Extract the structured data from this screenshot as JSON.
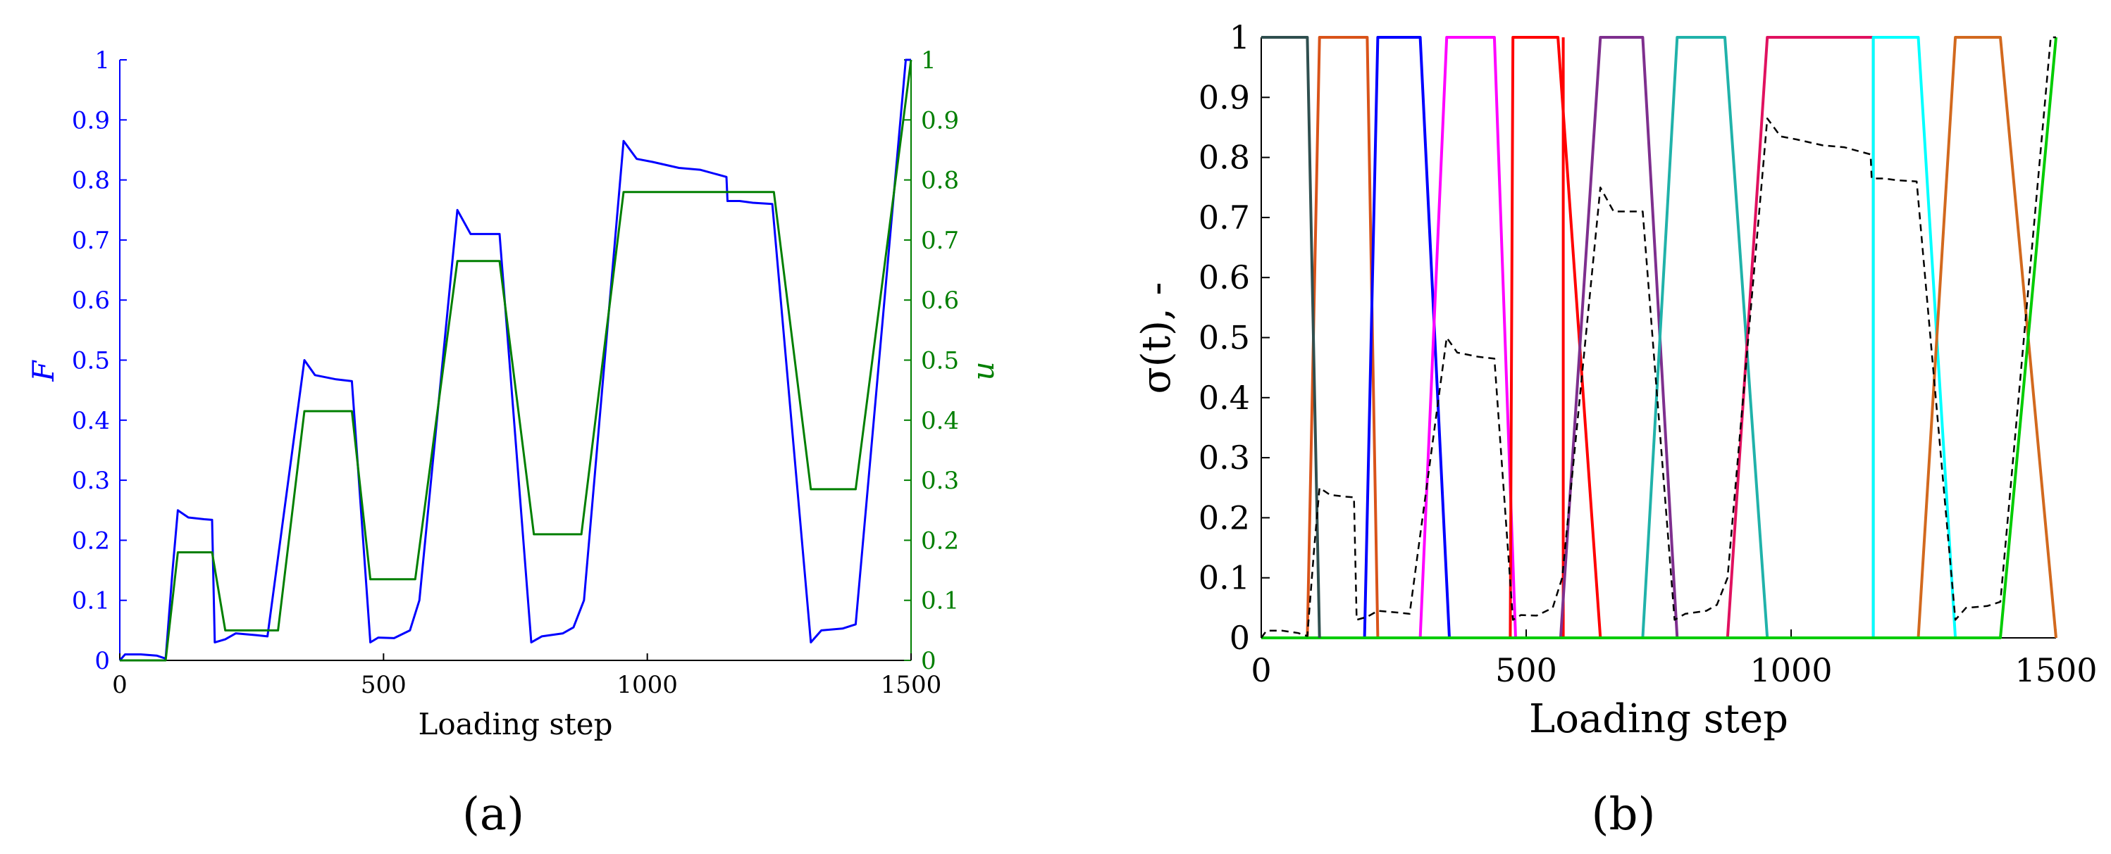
{
  "chart_data": [
    {
      "type": "line",
      "panel_label": "(a)",
      "xlabel": "Loading step",
      "ylabel_left": "F",
      "ylabel_right": "u",
      "xlim": [
        0,
        1500
      ],
      "ylim_left": [
        0,
        1
      ],
      "ylim_right": [
        0,
        1
      ],
      "xticks": [
        "0",
        "500",
        "1000",
        "1500"
      ],
      "yticks_left": [
        "0",
        "0.1",
        "0.2",
        "0.3",
        "0.4",
        "0.5",
        "0.6",
        "0.7",
        "0.8",
        "0.9",
        "1"
      ],
      "yticks_right": [
        "0",
        "0.1",
        "0.2",
        "0.3",
        "0.4",
        "0.5",
        "0.6",
        "0.7",
        "0.8",
        "0.9",
        "1"
      ],
      "grid": false,
      "series": [
        {
          "axis": "left",
          "color": "#0000ff",
          "points": [
            [
              0,
              0.0
            ],
            [
              10,
              0.01
            ],
            [
              40,
              0.01
            ],
            [
              70,
              0.008
            ],
            [
              87,
              0.003
            ],
            [
              100,
              0.15
            ],
            [
              110,
              0.25
            ],
            [
              130,
              0.238
            ],
            [
              160,
              0.235
            ],
            [
              175,
              0.234
            ],
            [
              180,
              0.03
            ],
            [
              200,
              0.035
            ],
            [
              220,
              0.045
            ],
            [
              260,
              0.042
            ],
            [
              280,
              0.04
            ],
            [
              350,
              0.5
            ],
            [
              370,
              0.475
            ],
            [
              410,
              0.468
            ],
            [
              440,
              0.465
            ],
            [
              475,
              0.03
            ],
            [
              490,
              0.038
            ],
            [
              520,
              0.037
            ],
            [
              550,
              0.05
            ],
            [
              568,
              0.1
            ],
            [
              640,
              0.75
            ],
            [
              665,
              0.71
            ],
            [
              705,
              0.71
            ],
            [
              720,
              0.71
            ],
            [
              780,
              0.03
            ],
            [
              800,
              0.04
            ],
            [
              840,
              0.045
            ],
            [
              860,
              0.055
            ],
            [
              880,
              0.1
            ],
            [
              955,
              0.865
            ],
            [
              980,
              0.835
            ],
            [
              1010,
              0.83
            ],
            [
              1060,
              0.82
            ],
            [
              1100,
              0.817
            ],
            [
              1150,
              0.805
            ],
            [
              1152,
              0.765
            ],
            [
              1175,
              0.765
            ],
            [
              1200,
              0.762
            ],
            [
              1237,
              0.76
            ],
            [
              1310,
              0.03
            ],
            [
              1330,
              0.05
            ],
            [
              1370,
              0.053
            ],
            [
              1395,
              0.06
            ],
            [
              1490,
              1.0
            ],
            [
              1500,
              1.0
            ]
          ]
        },
        {
          "axis": "right",
          "color": "#007f00",
          "points": [
            [
              0,
              0
            ],
            [
              87,
              0
            ],
            [
              110,
              0.18
            ],
            [
              175,
              0.18
            ],
            [
              200,
              0.05
            ],
            [
              300,
              0.05
            ],
            [
              350,
              0.415
            ],
            [
              440,
              0.415
            ],
            [
              475,
              0.135
            ],
            [
              560,
              0.135
            ],
            [
              640,
              0.665
            ],
            [
              720,
              0.665
            ],
            [
              785,
              0.21
            ],
            [
              875,
              0.21
            ],
            [
              955,
              0.78
            ],
            [
              1240,
              0.78
            ],
            [
              1310,
              0.285
            ],
            [
              1395,
              0.285
            ],
            [
              1500,
              1.0
            ]
          ]
        }
      ]
    },
    {
      "type": "line",
      "panel_label": "(b)",
      "xlabel": "Loading step",
      "ylabel": "σ(t), -",
      "xlim": [
        0,
        1500
      ],
      "ylim": [
        0,
        1
      ],
      "xticks": [
        "0",
        "500",
        "1000",
        "1500"
      ],
      "yticks": [
        "0",
        "0.1",
        "0.2",
        "0.3",
        "0.4",
        "0.5",
        "0.6",
        "0.7",
        "0.8",
        "0.9",
        "1"
      ],
      "grid": false,
      "series": [
        {
          "color": "#ff0000",
          "dashed": false,
          "points": [
            [
              570,
              0
            ],
            [
              570,
              0
            ],
            [
              570,
              1
            ],
            [
              570,
              1
            ]
          ]
        },
        {
          "color": "#d95319",
          "dashed": false,
          "points": [
            [
              87,
              0
            ],
            [
              110,
              1
            ],
            [
              200,
              1
            ],
            [
              220,
              0
            ]
          ]
        },
        {
          "color": "#0000ff",
          "dashed": false,
          "points": [
            [
              195,
              0
            ],
            [
              220,
              1
            ],
            [
              300,
              1
            ],
            [
              355,
              0
            ]
          ]
        },
        {
          "color": "#ff00ff",
          "dashed": false,
          "points": [
            [
              300,
              0
            ],
            [
              350,
              1
            ],
            [
              440,
              1
            ],
            [
              480,
              0
            ]
          ]
        },
        {
          "color": "#ff0000",
          "dashed": false,
          "points": [
            [
              475,
              0
            ],
            [
              480,
              0
            ],
            [
              480,
              0
            ],
            [
              480,
              0
            ]
          ]
        },
        {
          "color": "#ff0000",
          "dashed": false,
          "points": [
            [
              470,
              0
            ],
            [
              475,
              1
            ],
            [
              560,
              1
            ],
            [
              640,
              0
            ]
          ]
        },
        {
          "color": "#7e2f8e",
          "dashed": false,
          "points": [
            [
              565,
              0
            ],
            [
              640,
              1
            ],
            [
              720,
              1
            ],
            [
              785,
              0
            ]
          ]
        },
        {
          "color": "#20b2aa",
          "dashed": false,
          "points": [
            [
              720,
              0
            ],
            [
              785,
              1
            ],
            [
              875,
              1
            ],
            [
              955,
              0
            ]
          ]
        },
        {
          "color": "#e0115f",
          "dashed": false,
          "points": [
            [
              880,
              0
            ],
            [
              955,
              1
            ],
            [
              1155,
              1
            ],
            [
              1155,
              0
            ]
          ]
        },
        {
          "color": "#00ffff",
          "dashed": false,
          "points": [
            [
              1155,
              0
            ],
            [
              1155,
              1
            ],
            [
              1240,
              1
            ],
            [
              1310,
              0
            ]
          ]
        },
        {
          "color": "#d2691e",
          "dashed": false,
          "points": [
            [
              1240,
              0
            ],
            [
              1310,
              1
            ],
            [
              1395,
              1
            ],
            [
              1500,
              0
            ]
          ]
        },
        {
          "color": "#00cc00",
          "dashed": false,
          "points": [
            [
              0,
              0
            ],
            [
              1395,
              0
            ],
            [
              1500,
              1.0
            ]
          ]
        },
        {
          "color": "#2f4f4f",
          "dashed": false,
          "points": [
            [
              0,
              1
            ],
            [
              87,
              1
            ],
            [
              110,
              0
            ]
          ]
        },
        {
          "color": "#000000",
          "dashed": true,
          "points": [
            [
              0,
              0.0
            ],
            [
              10,
              0.012
            ],
            [
              40,
              0.012
            ],
            [
              70,
              0.008
            ],
            [
              87,
              0.003
            ],
            [
              100,
              0.15
            ],
            [
              110,
              0.25
            ],
            [
              130,
              0.238
            ],
            [
              160,
              0.235
            ],
            [
              175,
              0.234
            ],
            [
              180,
              0.03
            ],
            [
              200,
              0.035
            ],
            [
              220,
              0.045
            ],
            [
              260,
              0.042
            ],
            [
              280,
              0.04
            ],
            [
              350,
              0.5
            ],
            [
              370,
              0.475
            ],
            [
              410,
              0.468
            ],
            [
              440,
              0.465
            ],
            [
              475,
              0.03
            ],
            [
              490,
              0.038
            ],
            [
              520,
              0.037
            ],
            [
              550,
              0.05
            ],
            [
              568,
              0.1
            ],
            [
              640,
              0.75
            ],
            [
              665,
              0.71
            ],
            [
              705,
              0.71
            ],
            [
              720,
              0.71
            ],
            [
              780,
              0.03
            ],
            [
              800,
              0.04
            ],
            [
              840,
              0.045
            ],
            [
              860,
              0.055
            ],
            [
              880,
              0.1
            ],
            [
              955,
              0.865
            ],
            [
              980,
              0.835
            ],
            [
              1010,
              0.83
            ],
            [
              1060,
              0.82
            ],
            [
              1100,
              0.817
            ],
            [
              1150,
              0.805
            ],
            [
              1152,
              0.765
            ],
            [
              1175,
              0.765
            ],
            [
              1200,
              0.762
            ],
            [
              1237,
              0.76
            ],
            [
              1310,
              0.03
            ],
            [
              1330,
              0.05
            ],
            [
              1370,
              0.053
            ],
            [
              1395,
              0.06
            ],
            [
              1490,
              1.0
            ],
            [
              1500,
              1.0
            ]
          ]
        }
      ]
    }
  ]
}
